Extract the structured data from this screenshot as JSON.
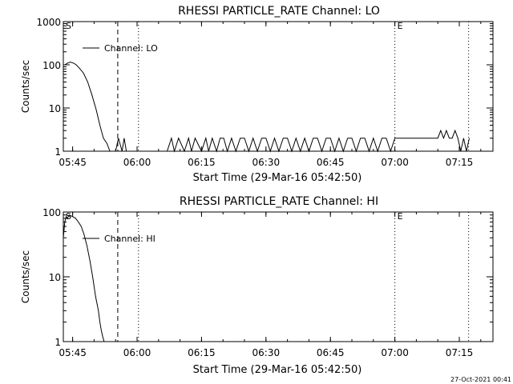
{
  "chart_data": [
    {
      "type": "line",
      "title": "RHESSI PARTICLE_RATE Channel: LO",
      "xlabel": "Start Time (29-Mar-16 05:42:50)",
      "ylabel": "Counts/sec",
      "yscale": "log",
      "xlim": [
        "05:42:50",
        "07:22:50"
      ],
      "ylim": [
        1,
        1000
      ],
      "xticks": [
        "05:45",
        "06:00",
        "06:15",
        "06:30",
        "06:45",
        "07:00",
        "07:15"
      ],
      "yticks": [
        "1",
        "10",
        "100",
        "1000"
      ],
      "grid": false,
      "legend": {
        "position": "top-left",
        "entries": [
          "Channel: LO"
        ]
      },
      "markers": [
        {
          "time": "05:42:50",
          "label": "S"
        },
        {
          "time": "05:55:30",
          "style": "dashed"
        },
        {
          "time": "06:00:20",
          "style": "dotted"
        },
        {
          "time": "07:00:00",
          "label": "E",
          "style": "dotted"
        },
        {
          "time": "07:17:10",
          "style": "dotted"
        }
      ],
      "series": [
        {
          "name": "Channel: LO",
          "x": [
            "05:43:10",
            "05:43:50",
            "05:44:30",
            "05:45:10",
            "05:45:50",
            "05:46:30",
            "05:47:30",
            "05:48:30",
            "05:49:30",
            "05:50:30",
            "05:51:20",
            "05:52:10",
            "05:53:00",
            "05:53:40",
            "05:54:20",
            "05:55:00",
            "05:55:40",
            "05:56:30",
            "05:57:00",
            "05:57:30",
            "06:07:00",
            "06:08:00",
            "06:08:40",
            "06:09:40",
            "06:11:00",
            "06:12:00",
            "06:12:40",
            "06:13:30",
            "06:15:00",
            "06:16:00",
            "06:16:40",
            "06:17:30",
            "06:18:30",
            "06:19:20",
            "06:20:10",
            "06:21:00",
            "06:22:00",
            "06:23:00",
            "06:24:00",
            "06:25:00",
            "06:26:00",
            "06:27:00",
            "06:28:00",
            "06:29:00",
            "06:30:00",
            "06:31:00",
            "06:32:00",
            "06:33:00",
            "06:34:00",
            "06:35:00",
            "06:36:00",
            "06:37:00",
            "06:38:00",
            "06:39:00",
            "06:40:00",
            "06:41:00",
            "06:42:00",
            "06:43:00",
            "06:44:00",
            "06:45:00",
            "06:46:00",
            "06:47:00",
            "06:48:00",
            "06:49:00",
            "06:50:00",
            "06:51:00",
            "06:52:00",
            "06:53:00",
            "06:54:00",
            "06:55:00",
            "06:56:00",
            "06:57:00",
            "06:58:00",
            "06:59:00",
            "07:00:00",
            "07:01:00",
            "07:02:00",
            "07:03:00",
            "07:04:00",
            "07:05:00",
            "07:06:00",
            "07:07:00",
            "07:08:00",
            "07:09:00",
            "07:10:00",
            "07:10:40",
            "07:11:20",
            "07:12:00",
            "07:12:40",
            "07:13:20",
            "07:14:00",
            "07:14:40",
            "07:15:20",
            "07:16:00",
            "07:16:40",
            "07:17:20"
          ],
          "y": [
            100,
            110,
            115,
            110,
            100,
            85,
            65,
            40,
            20,
            9,
            4,
            2,
            1.5,
            1,
            1,
            1,
            2,
            1,
            2,
            1,
            1,
            2,
            1,
            2,
            1,
            2,
            1,
            2,
            1,
            2,
            1,
            2,
            1,
            2,
            2,
            1,
            2,
            1,
            2,
            2,
            1,
            2,
            1,
            2,
            2,
            1,
            2,
            1,
            2,
            2,
            1,
            2,
            1,
            2,
            1,
            2,
            2,
            1,
            2,
            2,
            1,
            2,
            1,
            2,
            2,
            1,
            2,
            2,
            1,
            2,
            1,
            2,
            2,
            1,
            2,
            2,
            2,
            2,
            2,
            2,
            2,
            2,
            2,
            2,
            2,
            3,
            2,
            3,
            2,
            2,
            3,
            2,
            1,
            2,
            1,
            2
          ]
        }
      ]
    },
    {
      "type": "line",
      "title": "RHESSI PARTICLE_RATE Channel: HI",
      "xlabel": "Start Time (29-Mar-16 05:42:50)",
      "ylabel": "Counts/sec",
      "yscale": "log",
      "xlim": [
        "05:42:50",
        "07:22:50"
      ],
      "ylim": [
        1,
        100
      ],
      "xticks": [
        "05:45",
        "06:00",
        "06:15",
        "06:30",
        "06:45",
        "07:00",
        "07:15"
      ],
      "yticks": [
        "1",
        "10",
        "100"
      ],
      "grid": false,
      "legend": {
        "position": "top-left",
        "entries": [
          "Channel: HI"
        ]
      },
      "markers": [
        {
          "time": "05:42:50",
          "label": "S"
        },
        {
          "time": "05:55:30",
          "style": "dashed"
        },
        {
          "time": "06:00:20",
          "style": "dotted"
        },
        {
          "time": "07:00:00",
          "label": "E",
          "style": "dotted"
        },
        {
          "time": "07:17:10",
          "style": "dotted"
        }
      ],
      "series": [
        {
          "name": "Channel: HI",
          "x": [
            "05:42:50",
            "05:43:10",
            "05:43:30",
            "05:43:50",
            "05:44:10",
            "05:44:30",
            "05:45:00",
            "05:45:40",
            "05:46:20",
            "05:47:00",
            "05:47:40",
            "05:48:20",
            "05:49:00",
            "05:49:40",
            "05:50:20",
            "05:51:00",
            "05:51:20",
            "05:51:40",
            "05:52:00",
            "05:52:20"
          ],
          "y": [
            40,
            70,
            85,
            80,
            90,
            88,
            85,
            80,
            70,
            60,
            45,
            30,
            18,
            10,
            5,
            3,
            2,
            1.5,
            1.2,
            1
          ]
        }
      ]
    }
  ],
  "footer": {
    "timestamp": "27-Oct-2021 00:41"
  }
}
